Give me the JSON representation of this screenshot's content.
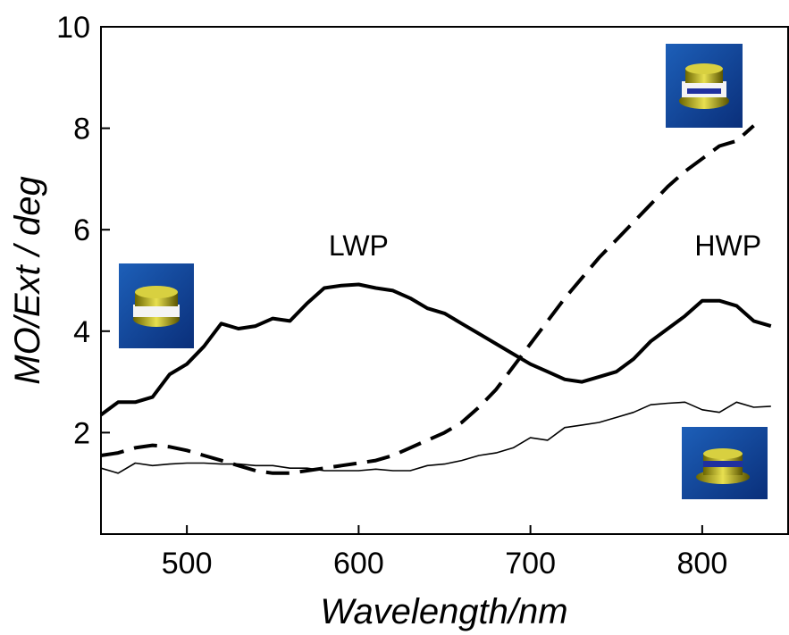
{
  "chart_data": {
    "type": "line",
    "xlabel": "Wavelength/nm",
    "ylabel": "MO/Ext / deg",
    "annotations": [
      {
        "text": "LWP",
        "x": 600,
        "y": 5.7
      },
      {
        "text": "HWP",
        "x": 815,
        "y": 5.7
      }
    ],
    "x": [
      450,
      460,
      470,
      480,
      490,
      500,
      510,
      520,
      530,
      540,
      550,
      560,
      570,
      580,
      590,
      600,
      610,
      620,
      630,
      640,
      650,
      660,
      670,
      680,
      690,
      700,
      710,
      720,
      730,
      740,
      750,
      760,
      770,
      780,
      790,
      800,
      810,
      820,
      830,
      840
    ],
    "series": [
      {
        "color": "#000000",
        "width": 4,
        "dash": false,
        "values": [
          2.35,
          2.6,
          2.6,
          2.7,
          3.15,
          3.35,
          3.7,
          4.15,
          4.05,
          4.1,
          4.25,
          4.2,
          4.55,
          4.85,
          4.9,
          4.92,
          4.85,
          4.8,
          4.65,
          4.45,
          4.35,
          4.15,
          3.95,
          3.75,
          3.55,
          3.35,
          3.2,
          3.05,
          3.0,
          3.1,
          3.2,
          3.45,
          3.8,
          4.05,
          4.3,
          4.6,
          4.6,
          4.5,
          4.2,
          4.1
        ]
      },
      {
        "color": "#000000",
        "width": 4,
        "dash": true,
        "values": [
          1.55,
          1.6,
          1.7,
          1.75,
          1.72,
          1.65,
          1.55,
          1.45,
          1.35,
          1.25,
          1.2,
          1.2,
          1.25,
          1.3,
          1.35,
          1.4,
          1.45,
          1.55,
          1.7,
          1.85,
          2.0,
          2.2,
          2.5,
          2.85,
          3.3,
          3.75,
          4.2,
          4.65,
          5.05,
          5.45,
          5.8,
          6.15,
          6.5,
          6.85,
          7.15,
          7.4,
          7.65,
          7.75,
          8.05,
          null
        ]
      },
      {
        "color": "#000000",
        "width": 1.6,
        "dash": false,
        "values": [
          1.3,
          1.2,
          1.4,
          1.35,
          1.38,
          1.4,
          1.4,
          1.38,
          1.38,
          1.35,
          1.35,
          1.3,
          1.3,
          1.25,
          1.25,
          1.25,
          1.28,
          1.25,
          1.25,
          1.35,
          1.38,
          1.45,
          1.55,
          1.6,
          1.7,
          1.9,
          1.85,
          2.1,
          2.15,
          2.2,
          2.3,
          2.4,
          2.55,
          2.58,
          2.6,
          2.45,
          2.4,
          2.6,
          2.5,
          2.52
        ]
      }
    ],
    "xlim": [
      450,
      850
    ],
    "ylim": [
      0,
      10
    ],
    "xticks": [
      500,
      600,
      700,
      800
    ],
    "yticks": [
      2,
      4,
      6,
      8,
      10
    ]
  }
}
